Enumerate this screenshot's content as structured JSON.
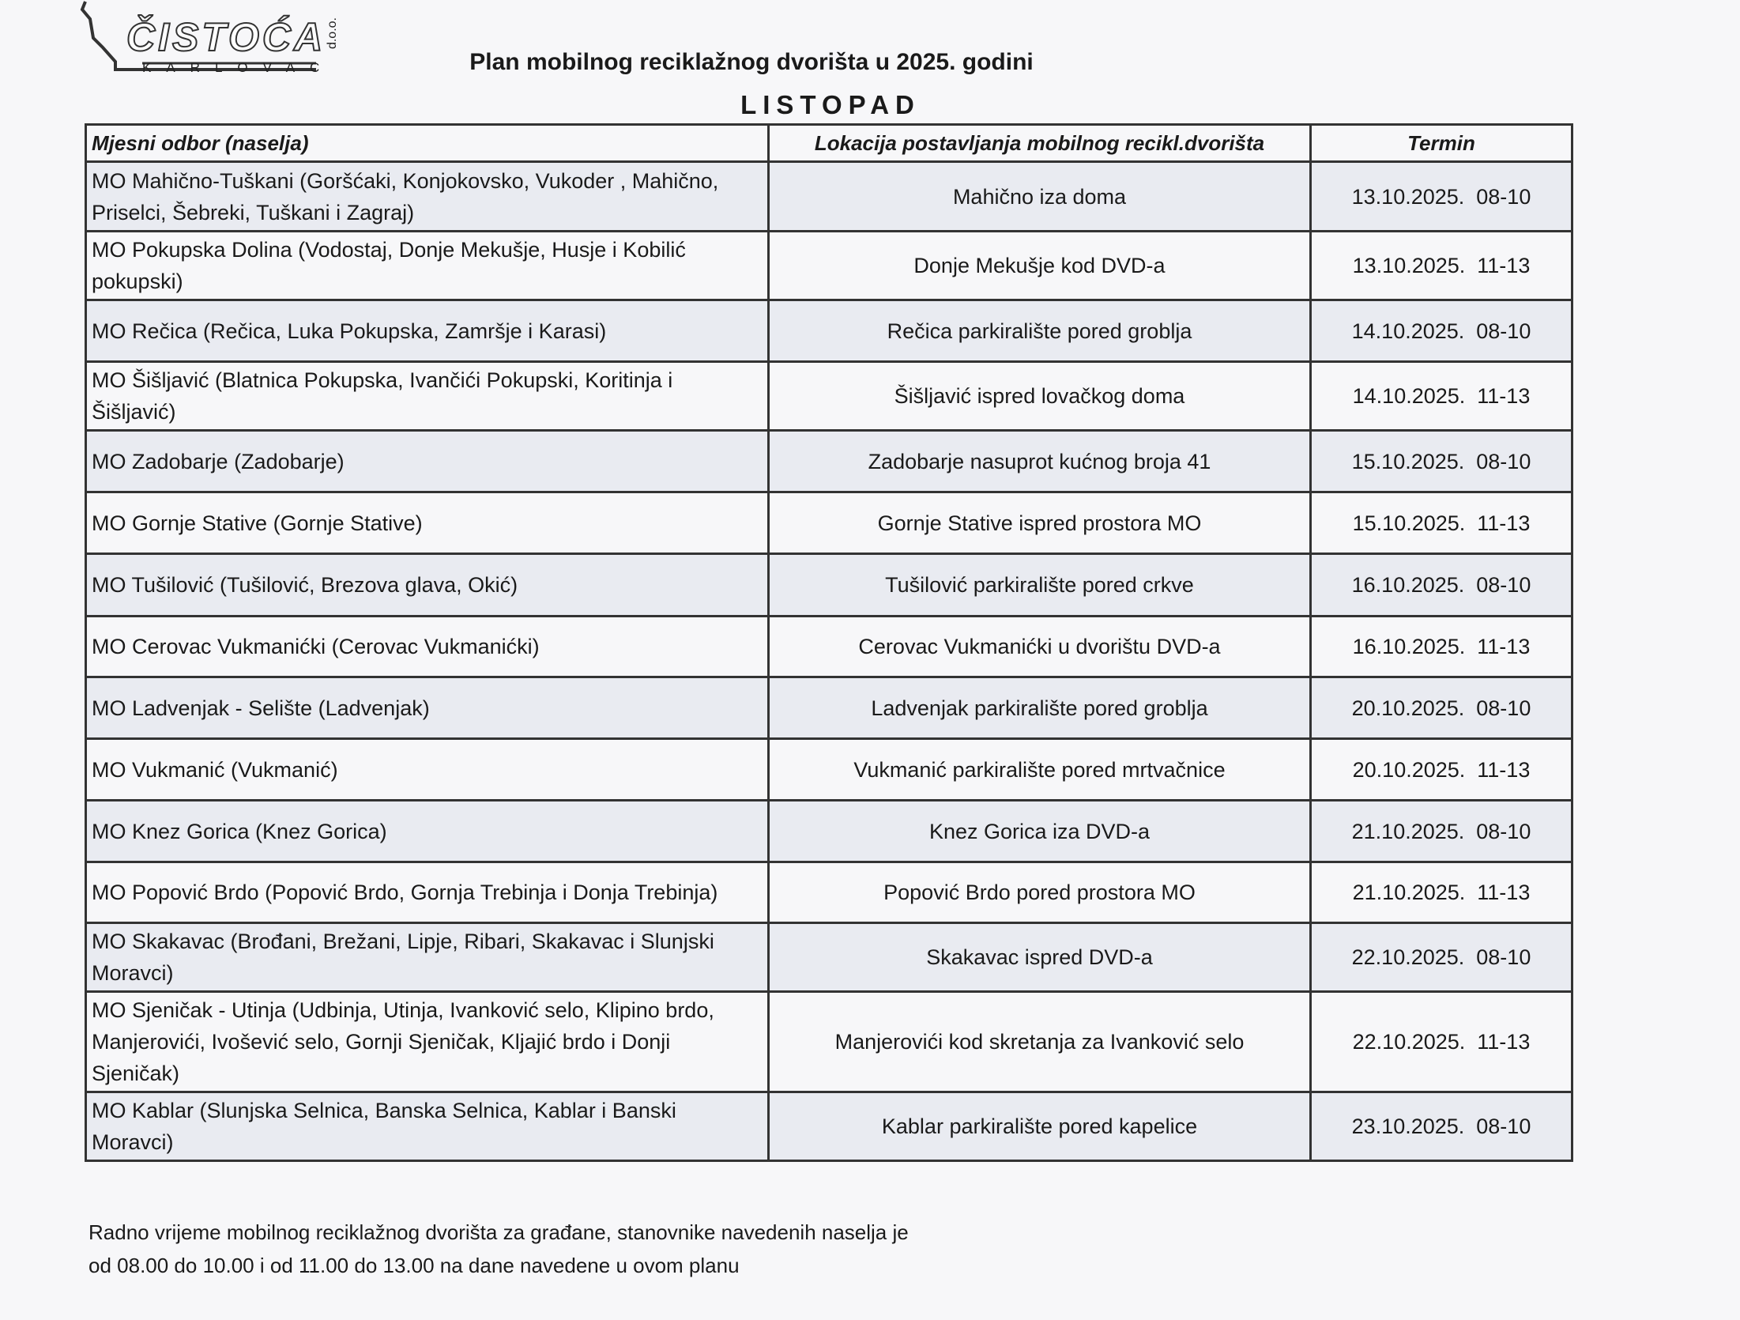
{
  "logo": {
    "name": "ČISTOĆA",
    "city": "KARLOVAC",
    "suffix": "d.o.o."
  },
  "title": "Plan mobilnog reciklažnog dvorišta u 2025. godini",
  "month": "LISTOPAD",
  "table": {
    "headers": [
      "Mjesni odbor (naselja)",
      "Lokacija postavljanja mobilnog recikl.dvorišta",
      "Termin"
    ],
    "rows": [
      {
        "odbor": "MO Mahično-Tuškani (Goršćaki, Konjokovsko, Vukoder , Mahično, Priselci, Šebreki, Tuškani i Zagraj)",
        "lokacija": "Mahično iza doma",
        "termin": "13.10.2025.  08-10"
      },
      {
        "odbor": "MO Pokupska Dolina (Vodostaj, Donje Mekušje, Husje i Kobilić pokupski)",
        "lokacija": "Donje Mekušje kod DVD-a",
        "termin": "13.10.2025.  11-13"
      },
      {
        "odbor": "MO Rečica (Rečica, Luka Pokupska, Zamršje i Karasi)",
        "lokacija": "Rečica parkiralište pored groblja",
        "termin": "14.10.2025.  08-10"
      },
      {
        "odbor": "MO Šišljavić (Blatnica Pokupska, Ivančići Pokupski, Koritinja i Šišljavić)",
        "lokacija": "Šišljavić ispred lovačkog doma",
        "termin": "14.10.2025.  11-13"
      },
      {
        "odbor": "MO Zadobarje (Zadobarje)",
        "lokacija": "Zadobarje nasuprot kućnog broja 41",
        "termin": "15.10.2025.  08-10"
      },
      {
        "odbor": "MO Gornje Stative (Gornje Stative)",
        "lokacija": "Gornje Stative ispred prostora MO",
        "termin": "15.10.2025.  11-13"
      },
      {
        "odbor": "MO Tušilović (Tušilović, Brezova glava, Okić)",
        "lokacija": "Tušilović parkiralište pored crkve",
        "termin": "16.10.2025.  08-10"
      },
      {
        "odbor": "MO Cerovac Vukmanićki (Cerovac Vukmanićki)",
        "lokacija": "Cerovac Vukmanićki u dvorištu DVD-a",
        "termin": "16.10.2025.  11-13"
      },
      {
        "odbor": "MO Ladvenjak - Selište (Ladvenjak)",
        "lokacija": "Ladvenjak parkiralište pored groblja",
        "termin": "20.10.2025.  08-10"
      },
      {
        "odbor": "MO Vukmanić (Vukmanić)",
        "lokacija": "Vukmanić parkiralište pored mrtvačnice",
        "termin": "20.10.2025.  11-13"
      },
      {
        "odbor": "MO Knez Gorica (Knez Gorica)",
        "lokacija": "Knez Gorica iza DVD-a",
        "termin": "21.10.2025.  08-10"
      },
      {
        "odbor": "MO Popović Brdo (Popović Brdo, Gornja Trebinja i Donja Trebinja)",
        "lokacija": "Popović Brdo pored prostora MO",
        "termin": "21.10.2025.  11-13"
      },
      {
        "odbor": "MO Skakavac (Brođani, Brežani, Lipje, Ribari, Skakavac i Slunjski Moravci)",
        "lokacija": "Skakavac ispred DVD-a",
        "termin": "22.10.2025.  08-10"
      },
      {
        "odbor": "MO Sjeničak - Utinja (Udbinja, Utinja, Ivanković selo, Klipino brdo, Manjerovići, Ivošević selo, Gornji Sjeničak, Kljajić brdo i Donji Sjeničak)",
        "lokacija": "Manjerovići kod skretanja za Ivanković selo",
        "termin": "22.10.2025.  11-13"
      },
      {
        "odbor": "MO Kablar (Slunjska Selnica, Banska Selnica, Kablar i Banski Moravci)",
        "lokacija": "Kablar parkiralište pored kapelice",
        "termin": "23.10.2025.  08-10"
      }
    ]
  },
  "footer": [
    "Radno vrijeme mobilnog reciklažnog dvorišta za građane, stanovnike navedenih naselja je",
    "od 08.00 do 10.00 i od 11.00 do 13.00 na dane navedene u ovom planu"
  ]
}
